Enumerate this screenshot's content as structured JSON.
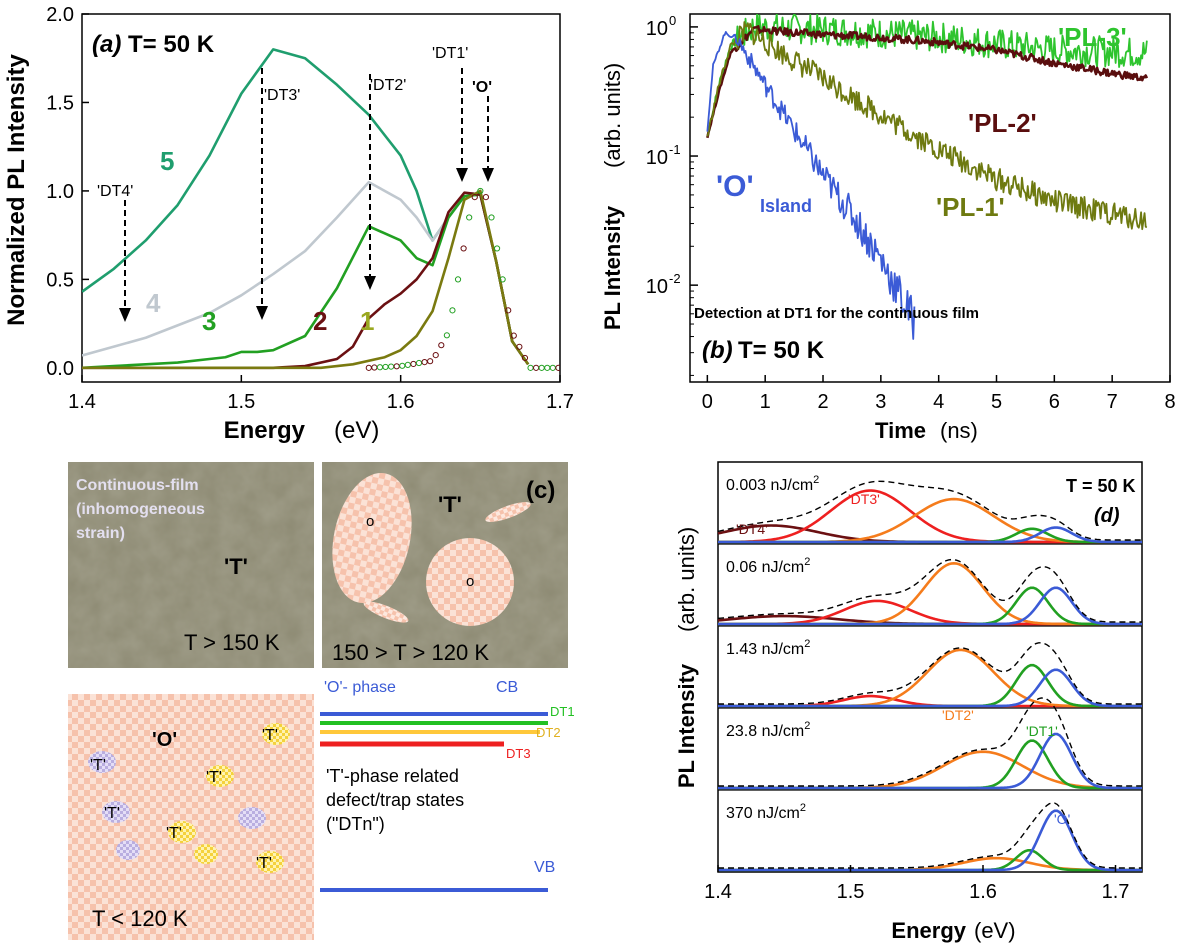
{
  "colors": {
    "green_5": "#1f9e6e",
    "grey_4": "#c0c8cf",
    "green_3": "#22a022",
    "darkred_2": "#6b1012",
    "olive_1": "#7a7a10",
    "blue": "#3b5bd6",
    "olive_pl1": "#6e7a10",
    "green_pl3": "#2ec42e",
    "darkred_pl2": "#5a0e0e",
    "red": "#ee2020",
    "orange": "#f57c1c",
    "photo_bg": "#8d8a73",
    "checker_peach": "#f6c2ac",
    "yellow_line": "#ffc83a"
  },
  "chart_data": [
    {
      "id": "a",
      "type": "line",
      "panel_label": "(a)",
      "title": "T= 50 K",
      "xlabel": "Energy",
      "xlabel_unit": "(eV)",
      "ylabel": "Normalized PL Intensity",
      "xlim": [
        1.4,
        1.7
      ],
      "ylim": [
        -0.08,
        2.0
      ],
      "xticks": [
        "1.4",
        "1.5",
        "1.6",
        "1.7"
      ],
      "yticks": [
        "0.0",
        "0.5",
        "1.0",
        "1.5",
        "2.0"
      ],
      "series": [
        {
          "name": "5",
          "color": "#1f9e6e",
          "x": [
            1.4,
            1.42,
            1.44,
            1.46,
            1.48,
            1.5,
            1.52,
            1.54,
            1.56,
            1.58,
            1.6,
            1.61,
            1.62,
            1.63,
            1.64,
            1.65,
            1.66,
            1.67,
            1.68
          ],
          "y": [
            0.43,
            0.56,
            0.72,
            0.92,
            1.2,
            1.55,
            1.8,
            1.75,
            1.6,
            1.43,
            1.2,
            1.0,
            0.72,
            0.85,
            0.97,
            0.98,
            0.6,
            0.15,
            0.02
          ]
        },
        {
          "name": "4",
          "color": "#c0c8cf",
          "x": [
            1.4,
            1.42,
            1.44,
            1.46,
            1.48,
            1.5,
            1.52,
            1.54,
            1.56,
            1.58,
            1.6,
            1.61,
            1.62,
            1.63,
            1.64,
            1.65,
            1.66,
            1.67,
            1.68
          ],
          "y": [
            0.07,
            0.12,
            0.17,
            0.24,
            0.31,
            0.41,
            0.53,
            0.66,
            0.85,
            1.05,
            0.95,
            0.85,
            0.72,
            0.85,
            0.97,
            0.98,
            0.6,
            0.15,
            0.02
          ]
        },
        {
          "name": "3",
          "color": "#22a022",
          "x": [
            1.4,
            1.42,
            1.44,
            1.46,
            1.48,
            1.49,
            1.5,
            1.51,
            1.52,
            1.54,
            1.56,
            1.58,
            1.6,
            1.61,
            1.62,
            1.63,
            1.64,
            1.65,
            1.66,
            1.67,
            1.68
          ],
          "y": [
            0.0,
            0.01,
            0.02,
            0.03,
            0.05,
            0.06,
            0.09,
            0.09,
            0.1,
            0.18,
            0.45,
            0.8,
            0.72,
            0.62,
            0.58,
            0.85,
            0.97,
            0.98,
            0.6,
            0.15,
            0.02
          ]
        },
        {
          "name": "2",
          "color": "#6b1012",
          "x": [
            1.4,
            1.52,
            1.54,
            1.56,
            1.57,
            1.58,
            1.59,
            1.6,
            1.61,
            1.62,
            1.63,
            1.64,
            1.65,
            1.66,
            1.67,
            1.68
          ],
          "y": [
            0.0,
            0.0,
            0.01,
            0.05,
            0.12,
            0.28,
            0.36,
            0.42,
            0.5,
            0.62,
            0.88,
            0.99,
            0.98,
            0.6,
            0.15,
            0.02
          ]
        },
        {
          "name": "1",
          "color": "#7a7a10",
          "x": [
            1.4,
            1.55,
            1.57,
            1.59,
            1.6,
            1.61,
            1.62,
            1.63,
            1.64,
            1.65,
            1.66,
            1.67,
            1.68
          ],
          "y": [
            0.0,
            0.0,
            0.02,
            0.06,
            0.1,
            0.18,
            0.32,
            0.62,
            0.95,
            1.0,
            0.6,
            0.15,
            0.02
          ]
        },
        {
          "name": "O",
          "color": "#3bb0a0",
          "x": [
            1.4,
            1.58,
            1.6,
            1.62,
            1.63,
            1.64,
            1.645,
            1.65,
            1.655,
            1.66,
            1.67,
            1.68
          ],
          "y": [
            0.0,
            0.0,
            0.01,
            0.04,
            0.2,
            0.7,
            0.95,
            1.0,
            0.95,
            0.7,
            0.2,
            0.02
          ]
        }
      ],
      "number_labels": [
        "5",
        "4",
        "3",
        "2",
        "1"
      ],
      "annotations": [
        "'DT4'",
        "'DT3'",
        "'DT2'",
        "'DT1'",
        "'O'"
      ]
    },
    {
      "id": "b",
      "type": "line",
      "scale": "log",
      "panel_label": "(b)",
      "title": "T= 50 K",
      "note": "Detection at DT1 for the continuous film",
      "xlabel": "Time",
      "xlabel_unit": "(ns)",
      "ylabel": "PL Intensity",
      "ylabel_unit": "(arb. units)",
      "xlim": [
        -0.3,
        8.0
      ],
      "ylim_log10": [
        -2.75,
        0.1
      ],
      "xticks": [
        "0",
        "1",
        "2",
        "3",
        "4",
        "5",
        "6",
        "7",
        "8"
      ],
      "yticks": [
        "10",
        "10",
        "10"
      ],
      "ytick_exp": [
        "0",
        "-1",
        "-2"
      ],
      "series": [
        {
          "name": "'PL-3'",
          "color": "#2ec42e",
          "x": [
            0,
            0.2,
            0.4,
            0.8,
            2,
            4,
            6,
            7.6
          ],
          "log10y": [
            -0.85,
            -0.45,
            -0.15,
            0.0,
            -0.02,
            -0.08,
            -0.18,
            -0.2
          ]
        },
        {
          "name": "'PL-2'",
          "color": "#5a0e0e",
          "x": [
            0,
            0.2,
            0.4,
            0.8,
            2,
            3,
            4,
            5,
            6,
            7,
            7.6
          ],
          "log10y": [
            -0.85,
            -0.5,
            -0.2,
            -0.02,
            -0.06,
            -0.08,
            -0.12,
            -0.18,
            -0.28,
            -0.36,
            -0.4
          ]
        },
        {
          "name": "'PL-1'",
          "color": "#6e7a10",
          "x": [
            0,
            0.2,
            0.4,
            0.7,
            1,
            2,
            3,
            4,
            5,
            6,
            7,
            7.6
          ],
          "log10y": [
            -0.85,
            -0.45,
            -0.15,
            -0.02,
            -0.12,
            -0.4,
            -0.68,
            -0.95,
            -1.18,
            -1.35,
            -1.45,
            -1.5
          ]
        },
        {
          "name": "'O'",
          "sub": "Island",
          "color": "#3b5bd6",
          "x": [
            0,
            0.1,
            0.3,
            0.5,
            1,
            1.5,
            2,
            2.5,
            3,
            3.3,
            3.6
          ],
          "log10y": [
            -0.8,
            -0.3,
            -0.05,
            -0.08,
            -0.45,
            -0.8,
            -1.15,
            -1.45,
            -1.8,
            -2.05,
            -2.3
          ]
        }
      ]
    },
    {
      "id": "d",
      "type": "line",
      "panel_label": "(d)",
      "title": "T = 50 K",
      "xlabel": "Energy",
      "xlabel_unit": "(eV)",
      "ylabel": "PL Intensity",
      "ylabel_unit": "(arb. units)",
      "xlim": [
        1.4,
        1.72
      ],
      "xticks": [
        "1.4",
        "1.5",
        "1.6",
        "1.7"
      ],
      "peaks": [
        {
          "name": "'DT4'",
          "color": "#6b1012"
        },
        {
          "name": "'DT3'",
          "color": "#ee2020"
        },
        {
          "name": "'DT2'",
          "color": "#f57c1c"
        },
        {
          "name": "'DT1'",
          "color": "#22a022"
        },
        {
          "name": "'O'",
          "color": "#3b5bd6"
        }
      ],
      "rows": [
        {
          "fluence": "0.003 nJ/cm",
          "sup": "2",
          "amps": [
            0.25,
            0.78,
            0.65,
            0.2,
            0.22
          ],
          "centers": [
            1.44,
            1.515,
            1.578,
            1.637,
            1.655
          ],
          "widths": [
            0.035,
            0.03,
            0.03,
            0.012,
            0.012
          ]
        },
        {
          "fluence": "0.06 nJ/cm",
          "sup": "2",
          "amps": [
            0.12,
            0.35,
            0.92,
            0.55,
            0.55
          ],
          "centers": [
            1.45,
            1.52,
            1.578,
            1.637,
            1.655
          ],
          "widths": [
            0.04,
            0.025,
            0.022,
            0.012,
            0.012
          ]
        },
        {
          "fluence": "1.43 nJ/cm",
          "sup": "2",
          "amps": [
            0.0,
            0.15,
            0.85,
            0.62,
            0.55
          ],
          "centers": [
            1.45,
            1.515,
            1.583,
            1.637,
            1.655
          ],
          "widths": [
            0.03,
            0.02,
            0.025,
            0.012,
            0.012
          ]
        },
        {
          "fluence": "23.8 nJ/cm",
          "sup": "2",
          "amps": [
            0.0,
            0.0,
            0.55,
            0.72,
            0.82
          ],
          "centers": [
            1.45,
            1.52,
            1.6,
            1.637,
            1.655
          ],
          "widths": [
            0.03,
            0.02,
            0.03,
            0.012,
            0.012
          ]
        },
        {
          "fluence": "370 nJ/cm",
          "sup": "2",
          "amps": [
            0.0,
            0.0,
            0.18,
            0.3,
            0.9
          ],
          "centers": [
            1.45,
            1.52,
            1.61,
            1.635,
            1.655
          ],
          "widths": [
            0.03,
            0.02,
            0.025,
            0.01,
            0.012
          ]
        }
      ]
    }
  ],
  "panel_c": {
    "label": "(c)",
    "photo1_text": [
      "Continuous-film",
      "(inhomogeneous",
      "strain)"
    ],
    "photo1_T": "'T'",
    "photo1_temp": "T > 150 K",
    "photo2_T": "'T'",
    "photo2_o": "o",
    "photo2_temp": "150 > T > 120 K",
    "photo3_O": "'O'",
    "photo3_T": "'T'",
    "photo3_temp": "T < 120 K",
    "band_o_phase": "'O'- phase",
    "band_cb": "CB",
    "band_dt1": "DT1",
    "band_dt2": "DT2",
    "band_dt3": "DT3",
    "band_desc": [
      "'T'-phase related",
      "defect/trap states",
      "(\"DTn\")"
    ],
    "band_vb": "VB"
  }
}
